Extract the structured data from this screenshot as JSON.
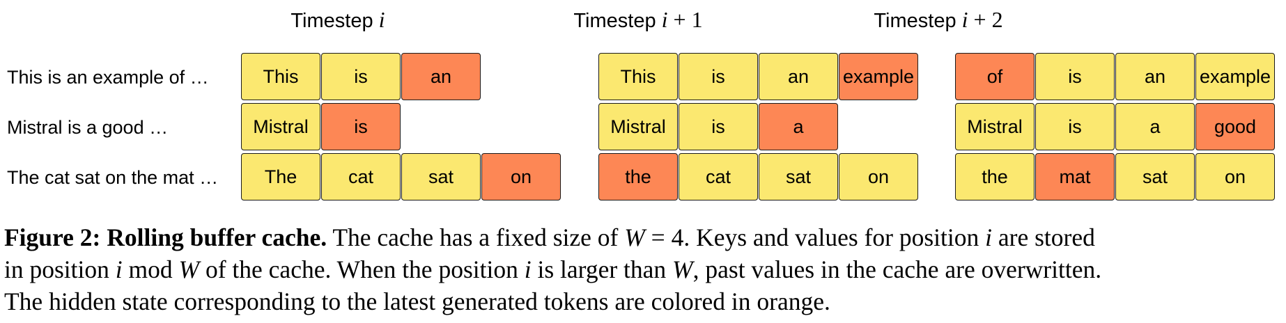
{
  "colors": {
    "cache_cell": "#fbe870",
    "latest_token": "#fd8755",
    "cell_border": "#1a1a1a"
  },
  "timesteps": [
    {
      "prefix": "Timestep ",
      "var": "i",
      "suffix": ""
    },
    {
      "prefix": "Timestep ",
      "var": "i",
      "suffix": " + 1"
    },
    {
      "prefix": "Timestep ",
      "var": "i",
      "suffix": " + 2"
    }
  ],
  "row_labels": [
    "This is an example of …",
    "Mistral is a good …",
    "The cat sat on the mat …"
  ],
  "panels": [
    {
      "rows": [
        [
          {
            "text": "This",
            "latest": false
          },
          {
            "text": "is",
            "latest": false
          },
          {
            "text": "an",
            "latest": true
          },
          null
        ],
        [
          {
            "text": "Mistral",
            "latest": false
          },
          {
            "text": "is",
            "latest": true
          },
          null,
          null
        ],
        [
          {
            "text": "The",
            "latest": false
          },
          {
            "text": "cat",
            "latest": false
          },
          {
            "text": "sat",
            "latest": false
          },
          {
            "text": "on",
            "latest": true
          }
        ]
      ]
    },
    {
      "rows": [
        [
          {
            "text": "This",
            "latest": false
          },
          {
            "text": "is",
            "latest": false
          },
          {
            "text": "an",
            "latest": false
          },
          {
            "text": "example",
            "latest": true
          }
        ],
        [
          {
            "text": "Mistral",
            "latest": false
          },
          {
            "text": "is",
            "latest": false
          },
          {
            "text": "a",
            "latest": true
          },
          null
        ],
        [
          {
            "text": "the",
            "latest": true
          },
          {
            "text": "cat",
            "latest": false
          },
          {
            "text": "sat",
            "latest": false
          },
          {
            "text": "on",
            "latest": false
          }
        ]
      ]
    },
    {
      "rows": [
        [
          {
            "text": "of",
            "latest": true
          },
          {
            "text": "is",
            "latest": false
          },
          {
            "text": "an",
            "latest": false
          },
          {
            "text": "example",
            "latest": false
          }
        ],
        [
          {
            "text": "Mistral",
            "latest": false
          },
          {
            "text": "is",
            "latest": false
          },
          {
            "text": "a",
            "latest": false
          },
          {
            "text": "good",
            "latest": true
          }
        ],
        [
          {
            "text": "the",
            "latest": false
          },
          {
            "text": "mat",
            "latest": true
          },
          {
            "text": "sat",
            "latest": false
          },
          {
            "text": "on",
            "latest": false
          }
        ]
      ]
    }
  ],
  "caption": {
    "label": "Figure 2: Rolling buffer cache.",
    "line1_a": " The cache has a fixed size of ",
    "line1_math": "W",
    "line1_b": " = 4. Keys and values for position ",
    "line1_math2": "i",
    "line1_c": " are stored",
    "line2_a": "in position ",
    "line2_math": "i",
    "line2_mod": " mod ",
    "line2_math2": "W",
    "line2_b": " of the cache. When the position ",
    "line2_math3": "i",
    "line2_c": " is larger than ",
    "line2_math4": "W",
    "line2_d": ", past values in the cache are overwritten.",
    "line3": "The hidden state corresponding to the latest generated tokens are colored in orange."
  }
}
